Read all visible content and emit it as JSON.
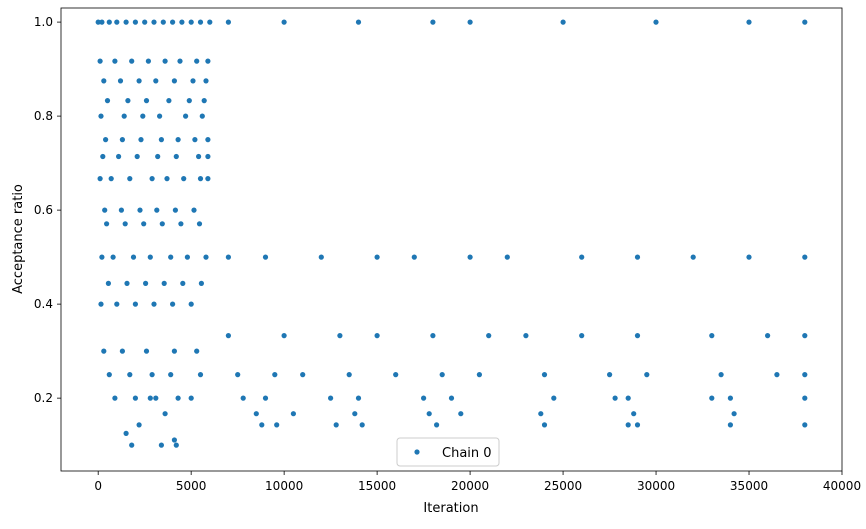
{
  "chart_data": {
    "type": "scatter",
    "title": "",
    "xlabel": "Iteration",
    "ylabel": "Acceptance ratio",
    "xlim": [
      -2000,
      40000
    ],
    "ylim": [
      0.045,
      1.03
    ],
    "xticks": [
      0,
      5000,
      10000,
      15000,
      20000,
      25000,
      30000,
      35000,
      40000
    ],
    "xtick_labels": [
      "0",
      "5000",
      "10000",
      "15000",
      "20000",
      "25000",
      "30000",
      "35000",
      "40000"
    ],
    "yticks": [
      0.2,
      0.4,
      0.6,
      0.8,
      1.0
    ],
    "ytick_labels": [
      "0.2",
      "0.4",
      "0.6",
      "0.8",
      "1.0"
    ],
    "grid": false,
    "legend": {
      "placement": "bottom-center",
      "entries": [
        "Chain 0"
      ]
    },
    "marker_color": "#1f77b4",
    "series": [
      {
        "name": "Chain 0",
        "x": [
          0,
          200,
          600,
          1000,
          1500,
          2000,
          2500,
          3000,
          3500,
          4000,
          4500,
          5000,
          5500,
          6000,
          7000,
          10000,
          14000,
          18000,
          20000,
          25000,
          30000,
          35000,
          38000,
          100,
          900,
          1800,
          2700,
          3600,
          4400,
          5300,
          5900,
          300,
          1200,
          2200,
          3100,
          4100,
          5100,
          5800,
          500,
          1600,
          2600,
          3800,
          4900,
          5700,
          150,
          1400,
          2400,
          3300,
          4700,
          5600,
          400,
          1300,
          2300,
          3400,
          4300,
          5200,
          5900,
          7000,
          9000,
          12000,
          15000,
          17000,
          20000,
          22000,
          26000,
          29000,
          32000,
          35000,
          38000,
          250,
          1100,
          2100,
          3200,
          4200,
          5400,
          5900,
          100,
          700,
          1700,
          2900,
          3700,
          4600,
          5500,
          5900,
          350,
          1250,
          2250,
          3150,
          4150,
          5150,
          450,
          1450,
          2450,
          3450,
          4450,
          5450,
          200,
          800,
          1900,
          2800,
          3900,
          4800,
          5800,
          7000,
          10000,
          13000,
          15000,
          18000,
          21000,
          23000,
          26000,
          29000,
          33000,
          36000,
          38000,
          150,
          1000,
          2000,
          3000,
          4000,
          5000,
          7500,
          9500,
          11000,
          13500,
          16000,
          18500,
          20500,
          24000,
          27500,
          29500,
          33500,
          36500,
          38000,
          550,
          1550,
          2550,
          3550,
          4550,
          5550,
          7800,
          9000,
          12500,
          14000,
          17500,
          19000,
          24500,
          27800,
          28500,
          33000,
          34000,
          38000,
          300,
          1300,
          2600,
          4100,
          5300,
          8500,
          10500,
          13800,
          17800,
          19500,
          23800,
          28800,
          34200,
          600,
          1700,
          2900,
          3900,
          5500,
          8800,
          9600,
          12800,
          14200,
          18200,
          24000,
          28500,
          29000,
          34000,
          38000,
          900,
          2000,
          3100,
          4300,
          5000,
          1800,
          3400,
          4200,
          1500,
          2200,
          2800,
          3600,
          4100
        ],
        "y": [
          1.0,
          1.0,
          1.0,
          1.0,
          1.0,
          1.0,
          1.0,
          1.0,
          1.0,
          1.0,
          1.0,
          1.0,
          1.0,
          1.0,
          1.0,
          1.0,
          1.0,
          1.0,
          1.0,
          1.0,
          1.0,
          1.0,
          1.0,
          0.917,
          0.917,
          0.917,
          0.917,
          0.917,
          0.917,
          0.917,
          0.917,
          0.875,
          0.875,
          0.875,
          0.875,
          0.875,
          0.875,
          0.875,
          0.833,
          0.833,
          0.833,
          0.833,
          0.833,
          0.833,
          0.8,
          0.8,
          0.8,
          0.8,
          0.8,
          0.8,
          0.75,
          0.75,
          0.75,
          0.75,
          0.75,
          0.75,
          0.75,
          0.5,
          0.5,
          0.5,
          0.5,
          0.5,
          0.5,
          0.5,
          0.5,
          0.5,
          0.5,
          0.5,
          0.5,
          0.714,
          0.714,
          0.714,
          0.714,
          0.714,
          0.714,
          0.714,
          0.667,
          0.667,
          0.667,
          0.667,
          0.667,
          0.667,
          0.667,
          0.667,
          0.6,
          0.6,
          0.6,
          0.6,
          0.6,
          0.6,
          0.571,
          0.571,
          0.571,
          0.571,
          0.571,
          0.571,
          0.5,
          0.5,
          0.5,
          0.5,
          0.5,
          0.5,
          0.5,
          0.333,
          0.333,
          0.333,
          0.333,
          0.333,
          0.333,
          0.333,
          0.333,
          0.333,
          0.333,
          0.333,
          0.333,
          0.4,
          0.4,
          0.4,
          0.4,
          0.4,
          0.4,
          0.25,
          0.25,
          0.25,
          0.25,
          0.25,
          0.25,
          0.25,
          0.25,
          0.25,
          0.25,
          0.25,
          0.25,
          0.25,
          0.444,
          0.444,
          0.444,
          0.444,
          0.444,
          0.444,
          0.2,
          0.2,
          0.2,
          0.2,
          0.2,
          0.2,
          0.2,
          0.2,
          0.2,
          0.2,
          0.2,
          0.2,
          0.3,
          0.3,
          0.3,
          0.3,
          0.3,
          0.167,
          0.167,
          0.167,
          0.167,
          0.167,
          0.167,
          0.167,
          0.167,
          0.25,
          0.25,
          0.25,
          0.25,
          0.25,
          0.143,
          0.143,
          0.143,
          0.143,
          0.143,
          0.143,
          0.143,
          0.143,
          0.143,
          0.143,
          0.2,
          0.2,
          0.2,
          0.2,
          0.2,
          0.1,
          0.1,
          0.1,
          0.125,
          0.143,
          0.2,
          0.167,
          0.111
        ]
      }
    ]
  }
}
